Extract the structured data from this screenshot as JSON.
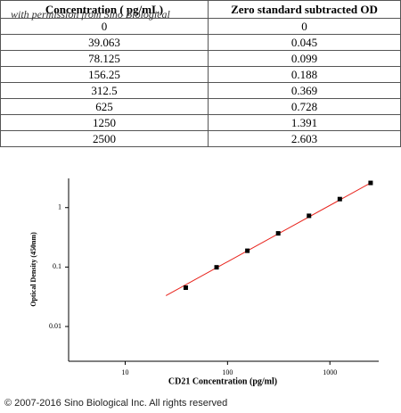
{
  "table": {
    "header": [
      "Concentration ( pg/mL)",
      "Zero standard subtracted OD"
    ],
    "rows": [
      [
        "0",
        "0"
      ],
      [
        "39.063",
        "0.045"
      ],
      [
        "78.125",
        "0.099"
      ],
      [
        "156.25",
        "0.188"
      ],
      [
        "312.5",
        "0.369"
      ],
      [
        "625",
        "0.728"
      ],
      [
        "1250",
        "1.391"
      ],
      [
        "2500",
        "2.603"
      ]
    ]
  },
  "watermark": "with permission from Sino Biological",
  "chart_data": {
    "type": "scatter",
    "x_label": "CD21 Concentration (pg/ml)",
    "y_label": "Optical Density (450nm)",
    "x": [
      39.063,
      78.125,
      156.25,
      312.5,
      625,
      1250,
      2500
    ],
    "series": [
      {
        "color": "#000000",
        "values": [
          0.045,
          0.099,
          0.188,
          0.369,
          0.728,
          1.391,
          2.603
        ]
      }
    ],
    "fit_line": {
      "color": "#e8231c",
      "x": [
        25,
        2500
      ],
      "values": [
        0.033,
        2.6
      ]
    },
    "x_log": true,
    "y_log": true,
    "xlim": [
      2.8,
      3000
    ],
    "ylim": [
      0.0026,
      3.1
    ],
    "xticks": [
      10,
      100,
      1000
    ],
    "yticks": [
      0.01,
      0.1,
      1
    ]
  },
  "footer": "© 2007-2016 Sino Biological Inc. All rights reserved"
}
